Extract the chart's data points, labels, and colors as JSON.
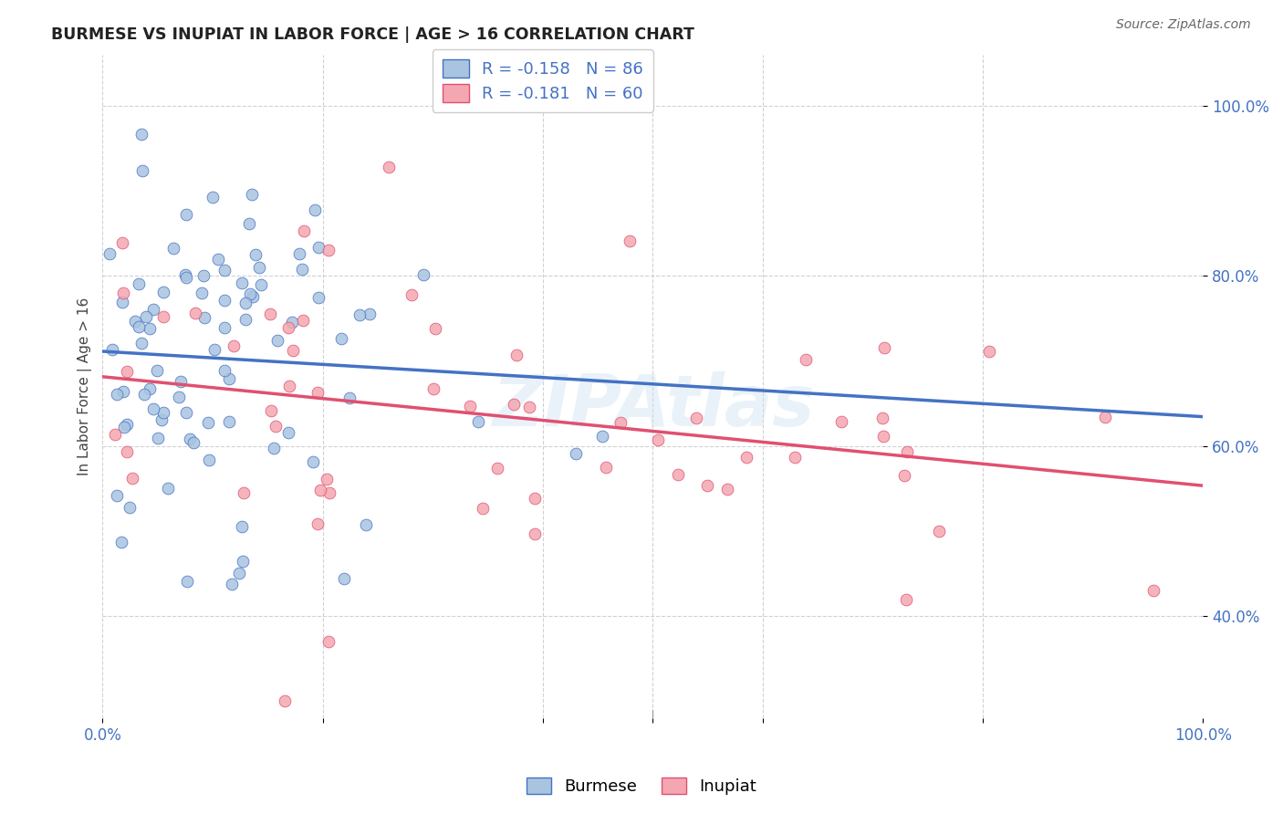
{
  "title": "BURMESE VS INUPIAT IN LABOR FORCE | AGE > 16 CORRELATION CHART",
  "source": "Source: ZipAtlas.com",
  "ylabel": "In Labor Force | Age > 16",
  "legend_burmese": "Burmese",
  "legend_inupiat": "Inupiat",
  "burmese_R": -0.158,
  "burmese_N": 86,
  "inupiat_R": -0.181,
  "inupiat_N": 60,
  "burmese_color": "#a8c4e0",
  "inupiat_color": "#f4a7b0",
  "burmese_line_color": "#4472c4",
  "inupiat_line_color": "#e05070",
  "bg_color": "#ffffff",
  "watermark": "ZIPAtlas",
  "xlim": [
    0.0,
    1.0
  ],
  "ylim": [
    0.28,
    1.06
  ],
  "seed_burmese": 42,
  "seed_inupiat": 7
}
